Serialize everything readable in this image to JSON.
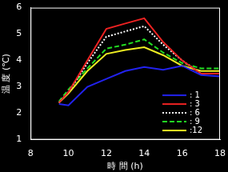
{
  "chart_data": {
    "type": "line",
    "x_label": "時 間 (h)",
    "y_label": "温 度 (℃)",
    "x": [
      9.5,
      10,
      11,
      12,
      13,
      14,
      15,
      16,
      17,
      18
    ],
    "series": [
      {
        "name": ": 1",
        "color": "#2222ee",
        "line_style": "solid",
        "values": [
          2.35,
          2.3,
          3.0,
          3.3,
          3.6,
          3.75,
          3.65,
          3.8,
          3.45,
          3.4
        ]
      },
      {
        "name": ": 3",
        "color": "#ee2222",
        "line_style": "solid",
        "values": [
          2.4,
          2.8,
          4.0,
          5.2,
          5.4,
          5.6,
          4.7,
          4.0,
          3.5,
          3.5
        ]
      },
      {
        "name": ": 6",
        "color": "#ffffff",
        "line_style": "dotted",
        "values": [
          2.4,
          2.8,
          3.9,
          4.9,
          5.1,
          5.3,
          4.6,
          4.0,
          3.5,
          3.5
        ]
      },
      {
        "name": ": 9",
        "color": "#22dd22",
        "line_style": "dashed",
        "values": [
          2.45,
          2.9,
          3.7,
          4.45,
          4.6,
          4.8,
          4.3,
          3.9,
          3.7,
          3.7
        ]
      },
      {
        "name": ":12",
        "color": "#eeee22",
        "line_style": "solid",
        "values": [
          2.4,
          2.75,
          3.6,
          4.25,
          4.4,
          4.5,
          4.2,
          3.8,
          3.6,
          3.6
        ]
      }
    ],
    "xlim": [
      8,
      18
    ],
    "xticks": [
      8,
      10,
      12,
      14,
      16,
      18
    ],
    "ylim": [
      1,
      6
    ],
    "yticks": [
      1,
      2,
      3,
      4,
      5,
      6
    ],
    "grid": false,
    "legend": "lower right"
  }
}
